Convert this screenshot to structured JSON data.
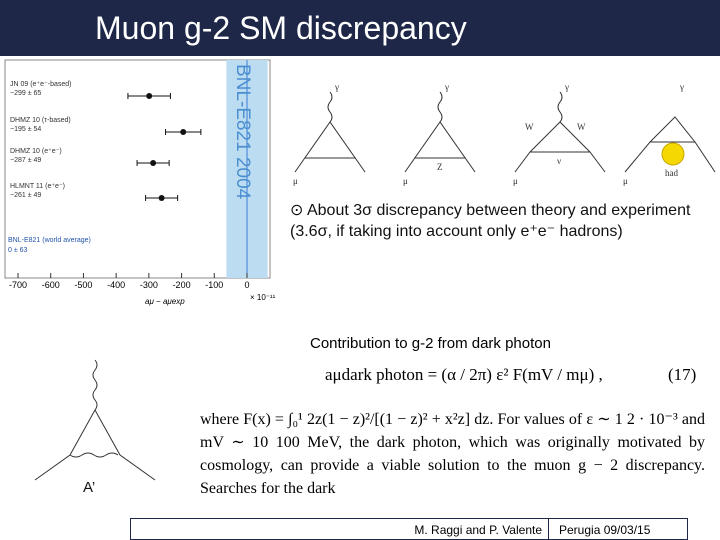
{
  "header": {
    "title": "Muon g-2 SM discrepancy"
  },
  "results_plot": {
    "banner": "BNL-E821 2004",
    "labels": [
      "JN 09 (e⁺e⁻-based)",
      "DHMZ 10 (τ-based)",
      "DHMZ 10 (e⁺e⁻)",
      "HLMNT 11 (e⁺e⁻)"
    ],
    "values": [
      -299,
      -195,
      -287,
      -261
    ],
    "errors": [
      65,
      54,
      49,
      49
    ],
    "value_labels": [
      "−299 ± 65",
      "−195 ± 54",
      "−287 ± 49",
      "−261 ± 49"
    ],
    "average": {
      "label": "BNL-E821 (world average)",
      "value": 0,
      "error": 63,
      "value_label": "0 ± 63"
    },
    "xticks": [
      {
        "value": -700,
        "label": "-700"
      },
      {
        "value": -600,
        "label": "-600"
      },
      {
        "value": -500,
        "label": "-500"
      },
      {
        "value": -400,
        "label": "-400"
      },
      {
        "value": -300,
        "label": "-300"
      },
      {
        "value": -200,
        "label": "-200"
      },
      {
        "value": -100,
        "label": "-100"
      },
      0
    ],
    "x_unit": "× 10⁻¹¹",
    "x_label": "aμ − aμexp"
  },
  "diagrams": {
    "photon": "γ",
    "muon": "μ",
    "z": "Z",
    "w": "W",
    "neutrino": "ν",
    "hadronic": "had"
  },
  "bullet": "About 3σ discrepancy between theory and experiment (3.6σ, if taking into account only e⁺e⁻ hadrons)",
  "dark_photon": {
    "heading": "Contribution to g-2 from dark photon",
    "equation": "aμdark photon = (α / 2π) ε² F(mV / mμ) ,",
    "equation_number": "(17)",
    "text": "where F(x) = ∫₀¹ 2z(1 − z)²/[(1 − z)² + x²z] dz. For values of ε ∼ 1 2 · 10⁻³ and mV ∼ 10 100 MeV, the dark photon, which was originally motivated by cosmology, can provide a viable solution to the muon g − 2 discrepancy. Searches for the dark",
    "diagram_label": "A’"
  },
  "footer": {
    "authors": "M. Raggi and P. Valente",
    "place_date": "Perugia 09/03/15"
  }
}
